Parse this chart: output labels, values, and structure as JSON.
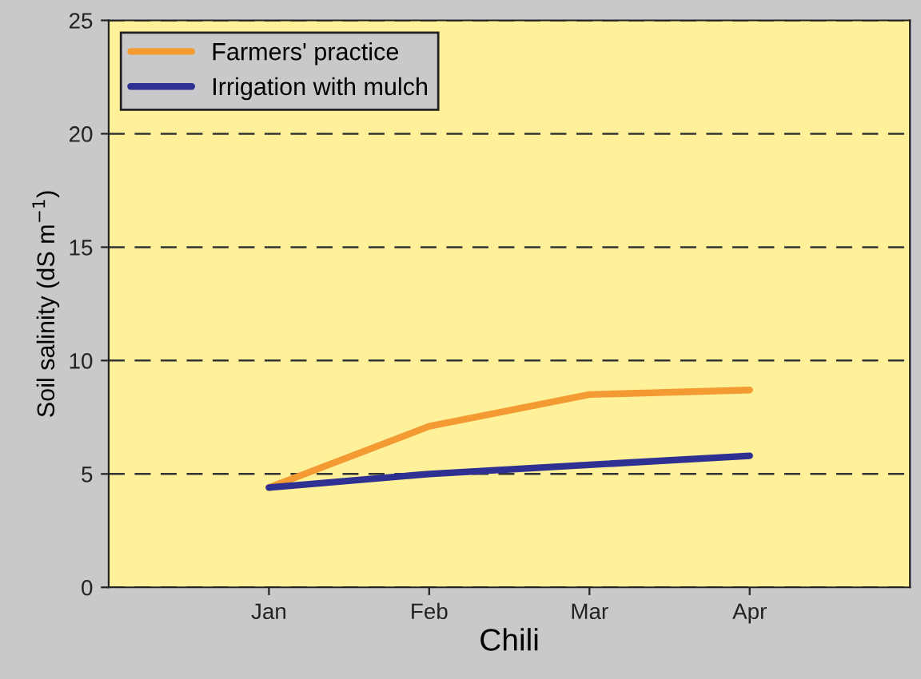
{
  "chart_data": {
    "type": "line",
    "xlabel": "Chili",
    "ylabel": "Soil salinity (dS m$^{−1}$)",
    "categories": [
      "Jan",
      "Feb",
      "Mar",
      "Apr"
    ],
    "series": [
      {
        "name": "Farmers' practice",
        "color": "#f39a33",
        "values": [
          4.4,
          7.1,
          8.5,
          8.7
        ]
      },
      {
        "name": "Irrigation with mulch",
        "color": "#2e3192",
        "values": [
          4.4,
          5.0,
          5.4,
          5.8
        ]
      }
    ],
    "ylim": [
      0,
      25
    ],
    "yticks": [
      0,
      5,
      10,
      15,
      20,
      25
    ],
    "grid": "y",
    "legend": "top left",
    "marker": "none",
    "line_style": "solid"
  }
}
